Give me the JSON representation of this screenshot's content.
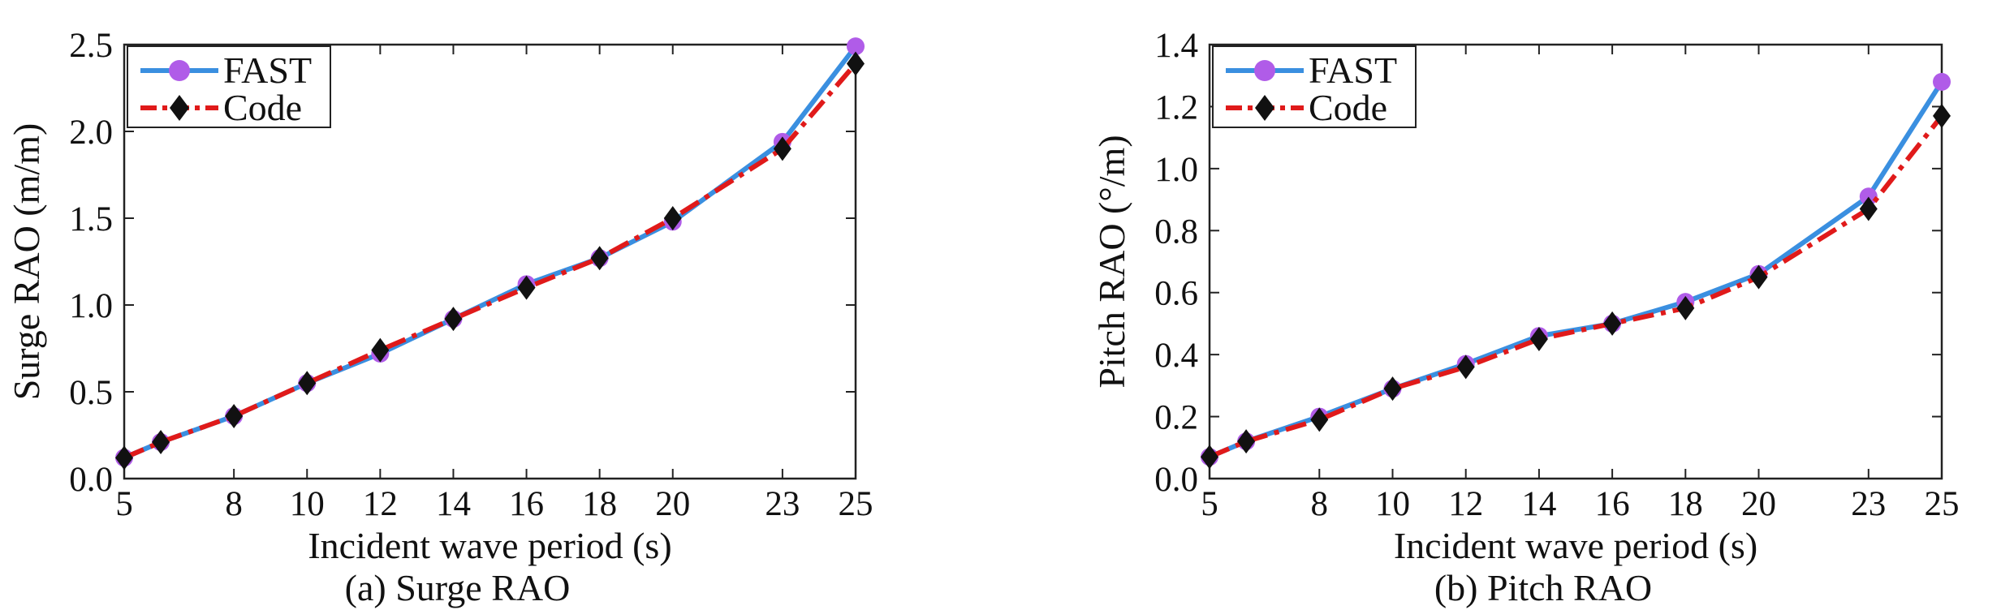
{
  "colors": {
    "fast_line": "#3a8fe0",
    "fast_marker": "#b05ce8",
    "code_line": "#e01a1a",
    "code_marker": "#111111",
    "axis": "#222222"
  },
  "chart_data": [
    {
      "type": "line",
      "caption": "(a) Surge RAO",
      "xlabel": "Incident wave period (s)",
      "ylabel": "Surge RAO (m/m)",
      "xlim": [
        5,
        25
      ],
      "ylim": [
        0,
        2.5
      ],
      "xticks": [
        5,
        8,
        10,
        12,
        14,
        16,
        18,
        20,
        23,
        25
      ],
      "yticks": [
        "0.0",
        "0.5",
        "1.0",
        "1.5",
        "2.0",
        "2.5"
      ],
      "x": [
        5,
        6,
        8,
        10,
        12,
        14,
        16,
        18,
        20,
        23,
        25
      ],
      "series": [
        {
          "name": "FAST",
          "values": [
            0.12,
            0.21,
            0.36,
            0.55,
            0.72,
            0.92,
            1.12,
            1.27,
            1.48,
            1.94,
            2.49
          ]
        },
        {
          "name": "Code",
          "values": [
            0.12,
            0.21,
            0.36,
            0.55,
            0.74,
            0.92,
            1.1,
            1.27,
            1.5,
            1.9,
            2.39
          ]
        }
      ],
      "legend_position": "top-left",
      "grid": false
    },
    {
      "type": "line",
      "caption": "(b) Pitch RAO",
      "xlabel": "Incident wave period (s)",
      "ylabel": "Pitch RAO (°/m)",
      "xlim": [
        5,
        25
      ],
      "ylim": [
        0,
        1.4
      ],
      "xticks": [
        5,
        8,
        10,
        12,
        14,
        16,
        18,
        20,
        23,
        25
      ],
      "yticks": [
        "0.0",
        "0.2",
        "0.4",
        "0.6",
        "0.8",
        "1.0",
        "1.2",
        "1.4"
      ],
      "x": [
        5,
        6,
        8,
        10,
        12,
        14,
        16,
        18,
        20,
        23,
        25
      ],
      "series": [
        {
          "name": "FAST",
          "values": [
            0.07,
            0.12,
            0.2,
            0.29,
            0.37,
            0.46,
            0.5,
            0.57,
            0.66,
            0.91,
            1.28
          ]
        },
        {
          "name": "Code",
          "values": [
            0.07,
            0.12,
            0.19,
            0.29,
            0.36,
            0.45,
            0.5,
            0.55,
            0.65,
            0.87,
            1.17
          ]
        }
      ],
      "legend_position": "top-left",
      "grid": false
    }
  ]
}
